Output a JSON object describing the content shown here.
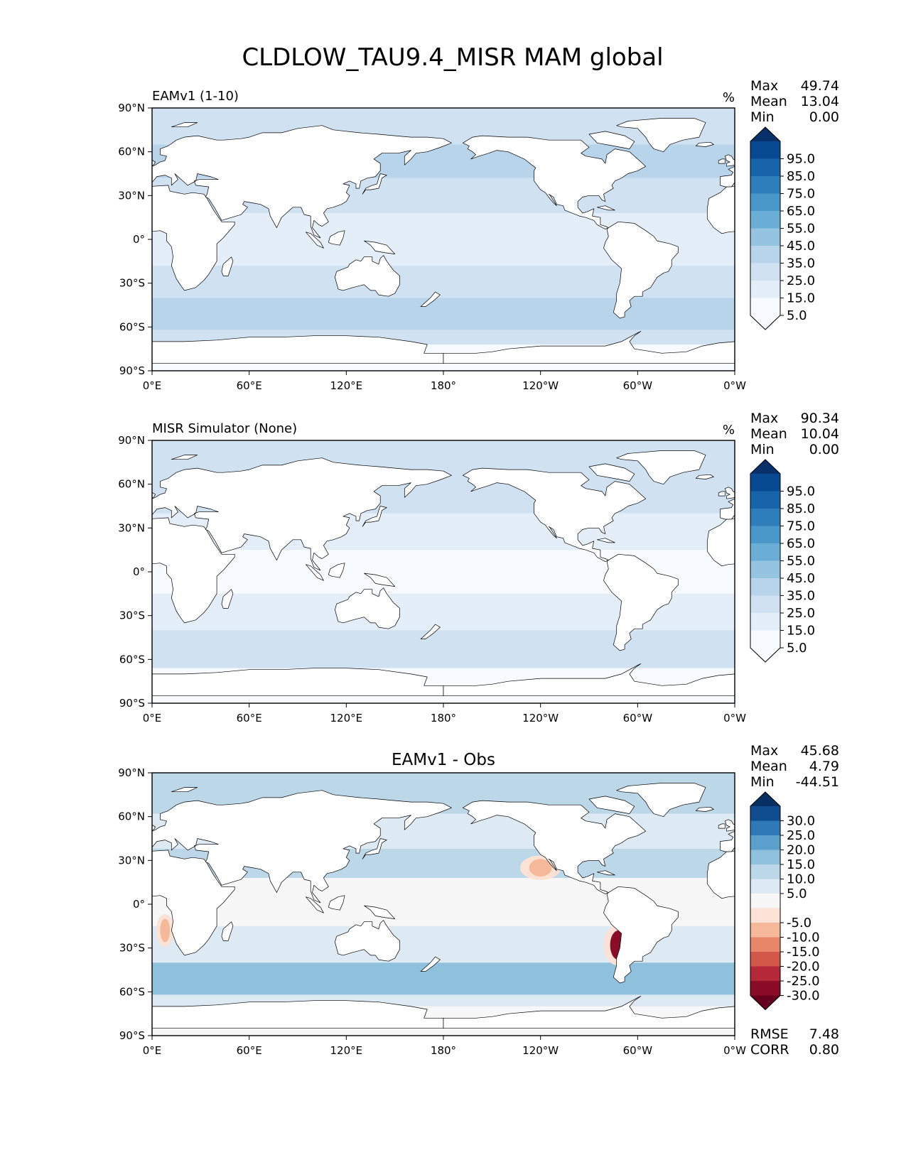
{
  "title": "CLDLOW_TAU9.4_MISR MAM global",
  "colors": {
    "blues": [
      "#f7fbff",
      "#e3eef8",
      "#d0e1f2",
      "#b7d4ea",
      "#94c4df",
      "#6aaed6",
      "#4a98c9",
      "#2e7ebc",
      "#1764ab",
      "#084a91",
      "#08306b"
    ],
    "diff_pos": [
      "#f7f7f7",
      "#dde9f3",
      "#bcd7e8",
      "#8fc1dd",
      "#5ba0cc",
      "#2f7ab6",
      "#0f4d8e",
      "#053061"
    ],
    "diff_neg": [
      "#f7f7f7",
      "#fbe2d5",
      "#f5b898",
      "#e8866a",
      "#d25749",
      "#b5283a",
      "#8a0c27",
      "#67001f"
    ],
    "land_outline": "#000000"
  },
  "chart_data": [
    {
      "type": "heatmap",
      "panel_id": "model",
      "title_left": "EAMv1 (1-10)",
      "units": "%",
      "stats": {
        "max_label": "Max",
        "max": "49.74",
        "mean_label": "Mean",
        "mean": "13.04",
        "min_label": "Min",
        "min": "0.00"
      },
      "colorbar_ticks": [
        "95.0",
        "85.0",
        "75.0",
        "65.0",
        "55.0",
        "45.0",
        "35.0",
        "25.0",
        "15.0",
        "5.0"
      ],
      "xticks": [
        "0°E",
        "60°E",
        "120°E",
        "180°",
        "120°W",
        "60°W",
        "0°W"
      ],
      "yticks": [
        "90°N",
        "60°N",
        "30°N",
        "0°",
        "30°S",
        "60°S",
        "90°S"
      ],
      "xlim": [
        0,
        360
      ],
      "ylim": [
        -90,
        90
      ],
      "field_bands": [
        {
          "lat": [
            65,
            90
          ],
          "level": 2
        },
        {
          "lat": [
            42,
            65
          ],
          "level": 3
        },
        {
          "lat": [
            18,
            42
          ],
          "level": 2
        },
        {
          "lat": [
            -18,
            18
          ],
          "level": 1
        },
        {
          "lat": [
            -40,
            -18
          ],
          "level": 2
        },
        {
          "lat": [
            -62,
            -40
          ],
          "level": 3
        },
        {
          "lat": [
            -72,
            -62
          ],
          "level": 2
        },
        {
          "lat": [
            -90,
            -72
          ],
          "level": 0
        }
      ]
    },
    {
      "type": "heatmap",
      "panel_id": "obs",
      "title_left": "MISR Simulator (None)",
      "units": "%",
      "stats": {
        "max_label": "Max",
        "max": "90.34",
        "mean_label": "Mean",
        "mean": "10.04",
        "min_label": "Min",
        "min": "0.00"
      },
      "colorbar_ticks": [
        "95.0",
        "85.0",
        "75.0",
        "65.0",
        "55.0",
        "45.0",
        "35.0",
        "25.0",
        "15.0",
        "5.0"
      ],
      "xticks": [
        "0°E",
        "60°E",
        "120°E",
        "180°",
        "120°W",
        "60°W",
        "0°W"
      ],
      "yticks": [
        "90°N",
        "60°N",
        "30°N",
        "0°",
        "30°S",
        "60°S",
        "90°S"
      ],
      "xlim": [
        0,
        360
      ],
      "ylim": [
        -90,
        90
      ],
      "field_bands": [
        {
          "lat": [
            62,
            90
          ],
          "level": 2
        },
        {
          "lat": [
            40,
            62
          ],
          "level": 2
        },
        {
          "lat": [
            15,
            40
          ],
          "level": 1
        },
        {
          "lat": [
            -15,
            15
          ],
          "level": 0
        },
        {
          "lat": [
            -40,
            -15
          ],
          "level": 1
        },
        {
          "lat": [
            -66,
            -40
          ],
          "level": 2
        },
        {
          "lat": [
            -90,
            -66
          ],
          "level": 0
        }
      ]
    },
    {
      "type": "heatmap",
      "panel_id": "diff",
      "title_center": "EAMv1 - Obs",
      "stats": {
        "max_label": "Max",
        "max": "45.68",
        "mean_label": "Mean",
        "mean": "4.79",
        "min_label": "Min",
        "min": "-44.51"
      },
      "colorbar_ticks": [
        "30.0",
        "25.0",
        "20.0",
        "15.0",
        "10.0",
        "5.0",
        "-5.0",
        "-10.0",
        "-15.0",
        "-20.0",
        "-25.0",
        "-30.0"
      ],
      "xticks": [
        "0°E",
        "60°E",
        "120°E",
        "180°",
        "120°W",
        "60°W",
        "0°W"
      ],
      "yticks": [
        "90°N",
        "60°N",
        "30°N",
        "0°",
        "30°S",
        "60°S",
        "90°S"
      ],
      "xlim": [
        0,
        360
      ],
      "ylim": [
        -90,
        90
      ],
      "metrics": {
        "rmse_label": "RMSE",
        "rmse": "7.48",
        "corr_label": "CORR",
        "corr": "0.80"
      },
      "field_bands": [
        {
          "lat": [
            62,
            90
          ],
          "level": 2
        },
        {
          "lat": [
            38,
            62
          ],
          "level": 1
        },
        {
          "lat": [
            18,
            38
          ],
          "level": 2
        },
        {
          "lat": [
            -15,
            18
          ],
          "level": 0
        },
        {
          "lat": [
            -40,
            -15
          ],
          "level": 1
        },
        {
          "lat": [
            -62,
            -40
          ],
          "level": 3
        },
        {
          "lat": [
            -70,
            -62
          ],
          "level": 1
        },
        {
          "lat": [
            -90,
            -70
          ],
          "level": 0
        }
      ],
      "negative_patches": [
        {
          "name": "peru-chile-stratocumulus",
          "lon": 288,
          "lat": -28,
          "rlon": 5,
          "rlat": 10,
          "level": 6
        },
        {
          "name": "california-stratocumulus",
          "lon": 240,
          "lat": 25,
          "rlon": 7,
          "rlat": 6,
          "level": 2
        },
        {
          "name": "namibia-stratocumulus",
          "lon": 8,
          "lat": -18,
          "rlon": 3,
          "rlat": 8,
          "level": 2
        }
      ]
    }
  ]
}
